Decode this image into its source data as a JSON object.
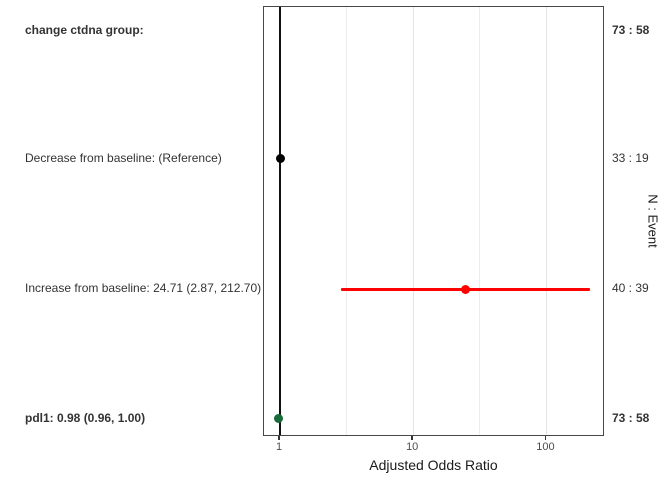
{
  "chart_data": {
    "type": "scatter",
    "subtype": "forest-plot",
    "title": "",
    "xlabel": "Adjusted Odds Ratio",
    "right_axis_label": "N : Event",
    "x_scale": "log10",
    "x_ticks": [
      1,
      10,
      100
    ],
    "x_tick_labels": [
      "1",
      "10",
      "100"
    ],
    "x_minor_gridlines": [
      3.162,
      31.623
    ],
    "x_range": [
      0.76,
      275
    ],
    "reference_line_x": 1,
    "grid": "vertical-only",
    "colors": {
      "reference_marker": "#000000",
      "increase_marker": "#ff0000",
      "pdl1_marker": "#1a6b3a",
      "panel_border": "#474747",
      "gridline": "#e9e9e9"
    },
    "rows": [
      {
        "label": "change ctdna group:",
        "bold": true,
        "n_event": "73 : 58",
        "estimate": null,
        "ci_low": null,
        "ci_high": null,
        "color": null
      },
      {
        "label": "Decrease from baseline: (Reference)",
        "bold": false,
        "n_event": "33 : 19",
        "estimate": 1.0,
        "ci_low": 1.0,
        "ci_high": 1.0,
        "color": "#000000"
      },
      {
        "label": "Increase from baseline: 24.71 (2.87, 212.70)",
        "bold": false,
        "n_event": "40 : 39",
        "estimate": 24.71,
        "ci_low": 2.87,
        "ci_high": 212.7,
        "color": "#ff0000"
      },
      {
        "label": "pdl1: 0.98 (0.96, 1.00)",
        "bold": true,
        "n_event": "73 : 58",
        "estimate": 0.98,
        "ci_low": 0.96,
        "ci_high": 1.0,
        "color": "#1a6b3a"
      }
    ]
  }
}
